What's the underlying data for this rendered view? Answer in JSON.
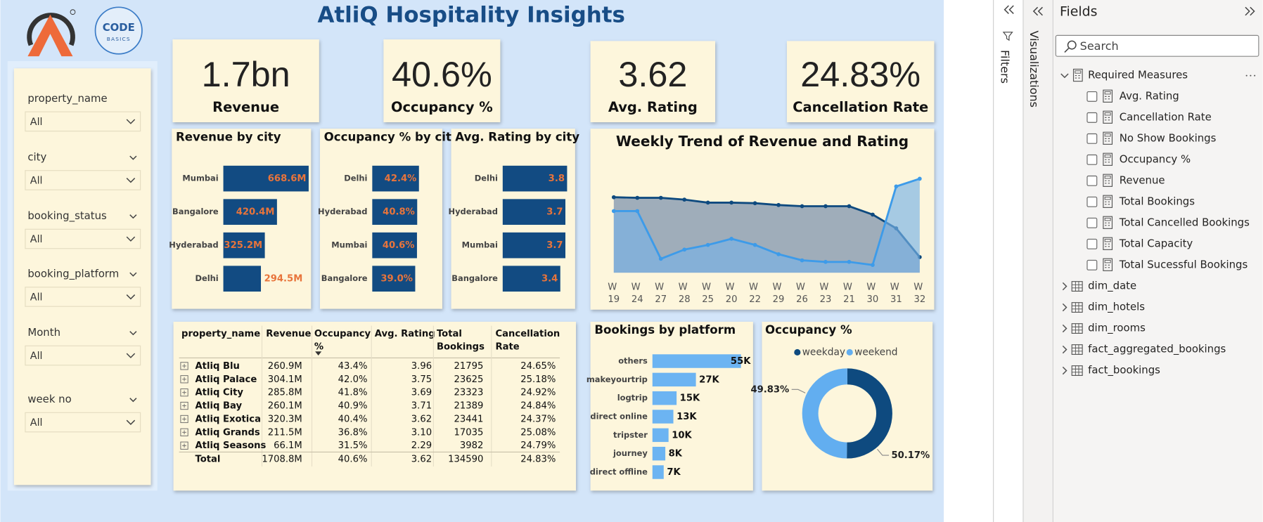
{
  "header": {
    "title": "AtliQ Hospitality Insights",
    "logo_text": [
      "CODE",
      "BASICS"
    ]
  },
  "filters": [
    {
      "label": "property_name",
      "value": "All"
    },
    {
      "label": "city",
      "value": "All"
    },
    {
      "label": "booking_status",
      "value": "All"
    },
    {
      "label": "booking_platform",
      "value": "All"
    },
    {
      "label": "Month",
      "value": "All"
    },
    {
      "label": "week no",
      "value": "All"
    }
  ],
  "kpis": [
    {
      "value": "1.7bn",
      "label": "Revenue"
    },
    {
      "value": "40.6%",
      "label": "Occupancy %"
    },
    {
      "value": "3.62",
      "label": "Avg. Rating"
    },
    {
      "value": "24.83%",
      "label": "Cancellation Rate"
    }
  ],
  "chart_data": [
    {
      "type": "bar",
      "orientation": "horizontal",
      "title": "Revenue by city",
      "categories": [
        "Mumbai",
        "Bangalore",
        "Hyderabad",
        "Delhi"
      ],
      "values": [
        668.6,
        420.4,
        325.2,
        294.5
      ],
      "value_labels": [
        "668.6M",
        "420.4M",
        "325.2M",
        "294.5M"
      ],
      "color": "#124b82",
      "label_color": "#e8743b"
    },
    {
      "type": "bar",
      "orientation": "horizontal",
      "title": "Occupancy % by city",
      "categories": [
        "Delhi",
        "Hyderabad",
        "Mumbai",
        "Bangalore"
      ],
      "values": [
        42.4,
        40.8,
        40.6,
        39.0
      ],
      "value_labels": [
        "42.4%",
        "40.8%",
        "40.6%",
        "39.0%"
      ],
      "color": "#124b82",
      "label_color": "#e8743b"
    },
    {
      "type": "bar",
      "orientation": "horizontal",
      "title": "Avg. Rating by city",
      "categories": [
        "Delhi",
        "Hyderabad",
        "Mumbai",
        "Bangalore"
      ],
      "values": [
        3.8,
        3.7,
        3.7,
        3.4
      ],
      "color": "#124b82",
      "label_color": "#e8743b"
    },
    {
      "type": "line",
      "title": "Weekly Trend of Revenue and Rating",
      "categories": [
        "W 19",
        "W 24",
        "W 27",
        "W 28",
        "W 25",
        "W 20",
        "W 22",
        "W 29",
        "W 26",
        "W 23",
        "W 21",
        "W 30",
        "W 31",
        "W 32"
      ],
      "series": [
        {
          "color": "#0e4a7f",
          "fill": "#9fadba",
          "values": [
            126,
            125,
            125,
            122,
            117,
            117,
            116,
            113,
            111,
            111,
            111,
            97,
            74,
            26
          ]
        },
        {
          "color": "#3d9be9",
          "fill": "#78b2e6",
          "axis": "y2",
          "values": [
            3.6,
            3.6,
            3.29,
            3.35,
            3.38,
            3.42,
            3.38,
            3.32,
            3.28,
            3.27,
            3.27,
            3.25,
            3.76,
            3.81
          ]
        }
      ],
      "ylim": [
        0,
        180
      ],
      "y2lim": [
        3.2,
        3.9
      ],
      "area": true
    },
    {
      "type": "bar",
      "orientation": "horizontal",
      "title": "Bookings by platform",
      "categories": [
        "others",
        "makeyourtrip",
        "logtrip",
        "direct online",
        "tripster",
        "journey",
        "direct offline"
      ],
      "values": [
        55,
        27,
        15,
        13,
        10,
        8,
        7
      ],
      "value_labels": [
        "55K",
        "27K",
        "15K",
        "13K",
        "10K",
        "8K",
        "7K"
      ],
      "color": "#6cb4f2",
      "label_color": "#111111"
    },
    {
      "type": "pie",
      "donut": true,
      "title": "Occupancy %",
      "categories": [
        "weekday",
        "weekend"
      ],
      "values": [
        50.17,
        49.83
      ],
      "value_labels": [
        "50.17%",
        "49.83%"
      ],
      "colors": [
        "#0e4a7f",
        "#62aef0"
      ],
      "legend": "top"
    }
  ],
  "table": {
    "columns": [
      "property_name",
      "Revenue",
      "Occupancy %",
      "Avg. Rating",
      "Total Bookings",
      "Cancellation Rate"
    ],
    "rows": [
      [
        "Atliq Blu",
        "260.9M",
        "43.4%",
        "3.96",
        "21795",
        "24.65%"
      ],
      [
        "Atliq Palace",
        "304.1M",
        "42.0%",
        "3.75",
        "23625",
        "25.18%"
      ],
      [
        "Atliq City",
        "285.8M",
        "41.8%",
        "3.69",
        "23323",
        "24.92%"
      ],
      [
        "Atliq Bay",
        "260.1M",
        "40.9%",
        "3.71",
        "21389",
        "24.84%"
      ],
      [
        "Atliq Exotica",
        "320.3M",
        "40.4%",
        "3.62",
        "23441",
        "24.37%"
      ],
      [
        "Atliq Grands",
        "211.5M",
        "36.8%",
        "3.10",
        "17035",
        "25.08%"
      ],
      [
        "Atliq Seasons",
        "66.1M",
        "31.5%",
        "2.29",
        "3982",
        "24.79%"
      ]
    ],
    "total": [
      "Total",
      "1708.8M",
      "40.6%",
      "3.62",
      "134590",
      "24.83%"
    ]
  },
  "panes": {
    "filters": "Filters",
    "visualizations": "Visualizations",
    "fields": {
      "title": "Fields",
      "search": "Search",
      "group": "Required Measures",
      "measures": [
        "Avg. Rating",
        "Cancellation Rate",
        "No Show Bookings",
        "Occupancy %",
        "Revenue",
        "Total Bookings",
        "Total Cancelled Bookings",
        "Total Capacity",
        "Total Sucessful Bookings"
      ],
      "tables": [
        "dim_date",
        "dim_hotels",
        "dim_rooms",
        "fact_aggregated_bookings",
        "fact_bookings"
      ]
    }
  }
}
